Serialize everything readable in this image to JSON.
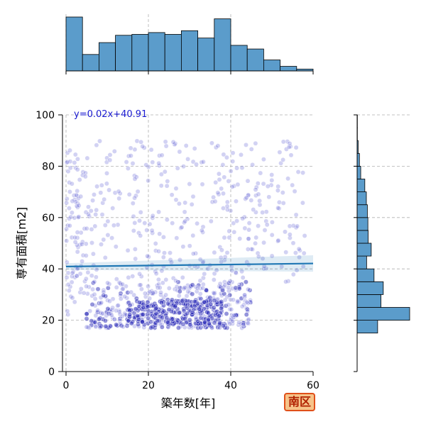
{
  "badge": {
    "label": "南区"
  },
  "chart_data": {
    "type": "scatter",
    "title": "",
    "xlabel": "築年数[年]",
    "ylabel": "専有面積[m2]",
    "xlim": [
      -1,
      60
    ],
    "ylim": [
      0,
      100
    ],
    "x_ticks": [
      "0",
      "20",
      "40",
      "60"
    ],
    "y_ticks": [
      "0",
      "20",
      "40",
      "60",
      "80",
      "100"
    ],
    "grid": true,
    "regression": {
      "label": "y=0.02x+40.91",
      "slope": 0.02,
      "intercept": 40.91,
      "x_range": [
        0,
        60
      ]
    },
    "colors": {
      "points": "#6a6ad8",
      "dense_points": "#2a2ab8",
      "fit_line": "#1f77b4",
      "hist": "#5b9ccb",
      "badge_border": "#e0501a",
      "badge_fill": "#f6c48a"
    },
    "scatter_clusters": [
      {
        "x": [
          5,
          45
        ],
        "y": [
          17,
          35
        ],
        "n": 420
      },
      {
        "x": [
          15,
          38
        ],
        "y": [
          18,
          28
        ],
        "n": 220
      },
      {
        "x": [
          0,
          5
        ],
        "y": [
          22,
          82
        ],
        "n": 60
      },
      {
        "x": [
          0,
          58
        ],
        "y": [
          35,
          90
        ],
        "n": 380
      }
    ],
    "x_hist": {
      "bin_edges": [
        0,
        4,
        8,
        12,
        16,
        20,
        24,
        28,
        32,
        36,
        40,
        44,
        48,
        52,
        56,
        60
      ],
      "counts": [
        59,
        18,
        31,
        39,
        40,
        42,
        40,
        44,
        36,
        57,
        28,
        24,
        12,
        5,
        2
      ]
    },
    "y_hist": {
      "bin_edges": [
        15,
        20,
        25,
        30,
        35,
        40,
        45,
        50,
        55,
        60,
        65,
        70,
        75,
        80,
        85,
        90,
        95,
        100
      ],
      "counts": [
        80,
        205,
        93,
        102,
        66,
        37,
        55,
        43,
        42,
        40,
        36,
        30,
        14,
        9,
        4,
        1,
        1
      ]
    }
  }
}
